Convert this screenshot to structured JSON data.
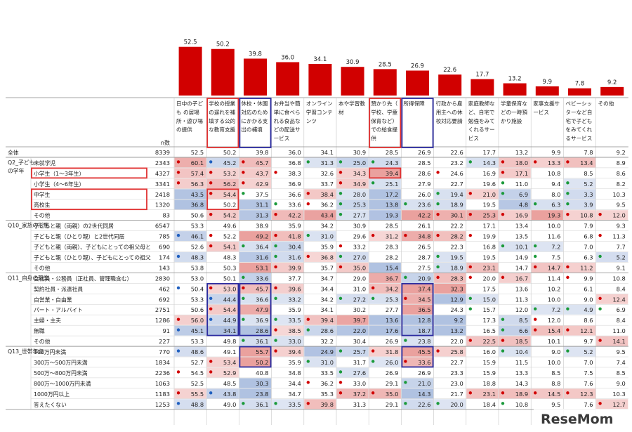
{
  "chart_data": {
    "type": "bar",
    "n_label": "n数",
    "categories": [
      "日中の子ども の居場所・遊び場の提供",
      "学校の授業の遅れを補填する公的な教育支援",
      "休校・休園対応のためにかかる支出の補填",
      "お弁当や簡単に食べられる食品などの配送サービス",
      "オンライン学習コンテンツ",
      "本や学習教材",
      "預かり先（学校、学童保育など）での給食提供",
      "所得保障",
      "行政から雇用主への休校対応要請",
      "家庭教師など、自宅で勉強をみてくれるサービス",
      "学童保育などの一時預かり施設",
      "家事支援サービス",
      "ベビーシッターなど自宅で子どもをみてくれるサービス",
      "その他"
    ],
    "values": [
      52.5,
      50.2,
      39.8,
      36.0,
      34.1,
      30.9,
      28.5,
      26.9,
      22.6,
      17.7,
      13.2,
      9.9,
      7.8,
      9.2
    ],
    "title": "",
    "xlabel": "",
    "ylabel": "",
    "bar_color": "#d10000",
    "groups": [
      {
        "label": "",
        "rows": [
          {
            "label": "全体",
            "n": 8339,
            "values": [
              52.5,
              50.2,
              39.8,
              36.0,
              34.1,
              30.9,
              28.5,
              26.9,
              22.6,
              17.7,
              13.2,
              9.9,
              7.8,
              9.2
            ]
          }
        ]
      },
      {
        "label": "Q2_子ども の学年",
        "rows": [
          {
            "label": "未就学児",
            "n": 2343,
            "values": [
              60.1,
              45.2,
              45.7,
              36.8,
              31.3,
              25.0,
              24.3,
              28.5,
              23.2,
              14.3,
              18.0,
              13.3,
              13.4,
              8.9
            ]
          },
          {
            "label": "小学生（1～3年生）",
            "n": 4327,
            "values": [
              57.4,
              53.2,
              43.7,
              38.3,
              32.6,
              34.3,
              39.4,
              28.6,
              24.6,
              16.9,
              17.1,
              10.8,
              8.5,
              8.6
            ]
          },
          {
            "label": "小学生（4～6年生）",
            "n": 3341,
            "values": [
              56.3,
              56.2,
              42.9,
              36.9,
              33.7,
              34.9,
              25.1,
              27.9,
              22.7,
              19.6,
              11.0,
              9.4,
              5.2,
              8.2
            ]
          },
          {
            "label": "中学生",
            "n": 2418,
            "values": [
              43.5,
              54.4,
              37.5,
              36.6,
              38.4,
              28.0,
              17.2,
              26.0,
              19.4,
              21.0,
              6.9,
              8.0,
              3.3,
              10.3
            ]
          },
          {
            "label": "高校生",
            "n": 1320,
            "values": [
              36.8,
              50.2,
              31.1,
              33.6,
              36.2,
              25.3,
              13.8,
              23.6,
              18.9,
              19.5,
              4.8,
              6.3,
              3.9,
              9.5
            ]
          },
          {
            "label": "その他",
            "n": 83,
            "values": [
              50.6,
              54.2,
              31.3,
              42.2,
              43.4,
              27.7,
              19.3,
              42.2,
              30.1,
              25.3,
              16.9,
              19.3,
              10.8,
              12.0
            ]
          }
        ]
      },
      {
        "label": "Q10_家族の形態",
        "rows": [
          {
            "label": "子どもと親（両親）の2世代同居",
            "n": 6547,
            "values": [
              53.3,
              49.6,
              38.9,
              35.9,
              34.2,
              30.9,
              28.5,
              26.1,
              22.2,
              17.1,
              13.4,
              10.0,
              7.9,
              9.3
            ]
          },
          {
            "label": "子どもと親（ひとり親）と2世代同居",
            "n": 785,
            "values": [
              46.1,
              52.2,
              49.2,
              41.8,
              31.0,
              29.6,
              31.2,
              34.8,
              28.2,
              19.9,
              13.5,
              11.6,
              6.8,
              11.3
            ]
          },
          {
            "label": "子どもと親（両親）、子どもにとっての祖父母との3世代同居",
            "n": 690,
            "values": [
              52.6,
              54.1,
              36.4,
              30.4,
              35.9,
              33.2,
              28.3,
              26.5,
              22.3,
              16.8,
              10.1,
              7.2,
              7.0,
              7.7
            ]
          },
          {
            "label": "子どもと親（ひとり親）、子どもにとっての祖父母との3世代同居",
            "n": 174,
            "values": [
              48.3,
              48.3,
              31.6,
              31.6,
              36.8,
              27.0,
              28.2,
              28.7,
              19.5,
              19.5,
              14.9,
              7.5,
              6.3,
              5.2
            ]
          },
          {
            "label": "その他",
            "n": 143,
            "values": [
              53.8,
              50.3,
              53.1,
              39.9,
              35.7,
              35.0,
              15.4,
              27.5,
              18.9,
              23.1,
              14.7,
              14.7,
              11.2,
              9.1
            ]
          }
        ]
      },
      {
        "label": "Q11_自身の職業",
        "rows": [
          {
            "label": "会社員・公務員（正社員、管理職含む）",
            "n": 2830,
            "values": [
              53.0,
              50.1,
              33.6,
              37.7,
              34.7,
              29.0,
              36.7,
              20.9,
              28.3,
              20.0,
              16.7,
              11.4,
              9.9,
              10.8
            ]
          },
          {
            "label": "契約社員・派遣社員",
            "n": 462,
            "values": [
              50.4,
              53.0,
              45.7,
              39.6,
              34.4,
              31.0,
              34.2,
              37.4,
              32.3,
              17.5,
              13.6,
              10.2,
              6.1,
              8.4
            ]
          },
          {
            "label": "自営業・自由業",
            "n": 692,
            "values": [
              53.3,
              44.4,
              36.6,
              33.2,
              34.2,
              27.2,
              25.3,
              34.5,
              12.9,
              15.0,
              11.3,
              10.0,
              9.0,
              12.4
            ]
          },
          {
            "label": "パート・アルバイト",
            "n": 2751,
            "values": [
              50.6,
              54.4,
              47.9,
              35.9,
              34.1,
              30.2,
              27.7,
              36.5,
              24.3,
              15.7,
              12.0,
              7.2,
              4.9,
              6.9
            ]
          },
          {
            "label": "主婦・主夫",
            "n": 1286,
            "values": [
              56.0,
              44.9,
              36.9,
              33.5,
              39.4,
              39.7,
              13.6,
              12.8,
              9.2,
              17.3,
              8.5,
              12.0,
              8.6,
              8.4
            ]
          },
          {
            "label": "無職",
            "n": 91,
            "values": [
              45.1,
              34.1,
              28.6,
              38.5,
              28.6,
              22.0,
              17.6,
              18.7,
              13.2,
              16.5,
              6.6,
              15.4,
              12.1,
              11.0
            ]
          },
          {
            "label": "その他",
            "n": 227,
            "values": [
              53.3,
              49.8,
              36.1,
              33.0,
              32.2,
              30.4,
              26.9,
              23.8,
              22.0,
              22.5,
              18.5,
              10.1,
              9.7,
              14.1
            ]
          }
        ]
      },
      {
        "label": "Q13_世帯年収",
        "rows": [
          {
            "label": "300万円未満",
            "n": 770,
            "values": [
              48.6,
              49.1,
              55.7,
              39.4,
              24.9,
              25.7,
              31.8,
              45.5,
              25.8,
              16.0,
              10.4,
              9.0,
              5.2,
              9.5
            ]
          },
          {
            "label": "300万～500万円未満",
            "n": 1834,
            "values": [
              52.7,
              53.4,
              50.2,
              35.9,
              31.0,
              31.7,
              26.0,
              33.6,
              22.7,
              15.9,
              11.5,
              10.0,
              7.0,
              7.4
            ]
          },
          {
            "label": "500万～800万円未満",
            "n": 2236,
            "values": [
              54.5,
              52.9,
              40.8,
              34.8,
              33.5,
              27.6,
              26.9,
              26.9,
              23.3,
              15.9,
              13.3,
              8.5,
              7.5,
              8.5
            ]
          },
          {
            "label": "800万～1000万円未満",
            "n": 1063,
            "values": [
              52.5,
              48.5,
              30.3,
              34.4,
              36.2,
              33.0,
              29.1,
              21.0,
              23.0,
              18.8,
              14.3,
              8.8,
              7.6,
              9.0
            ]
          },
          {
            "label": "1000万円以上",
            "n": 1183,
            "values": [
              55.5,
              43.8,
              23.8,
              34.7,
              35.3,
              37.2,
              35.0,
              14.3,
              21.7,
              23.1,
              18.9,
              14.5,
              12.3,
              10.3
            ]
          },
          {
            "label": "答えたくない",
            "n": 1253,
            "values": [
              48.8,
              49.0,
              36.1,
              33.5,
              39.8,
              31.3,
              29.1,
              22.6,
              20.0,
              18.4,
              10.8,
              9.5,
              7.6,
              12.7
            ]
          }
        ]
      }
    ],
    "colors": {
      "high": "#d9534f",
      "low": "#6f8fc9",
      "dot_high": "#d10000",
      "dot_low": "#1f5fbf",
      "dot_green": "#1a9a3a",
      "box_red": "#e03030",
      "box_blue": "#2b2ba0"
    },
    "watermark": "ReseMom"
  }
}
